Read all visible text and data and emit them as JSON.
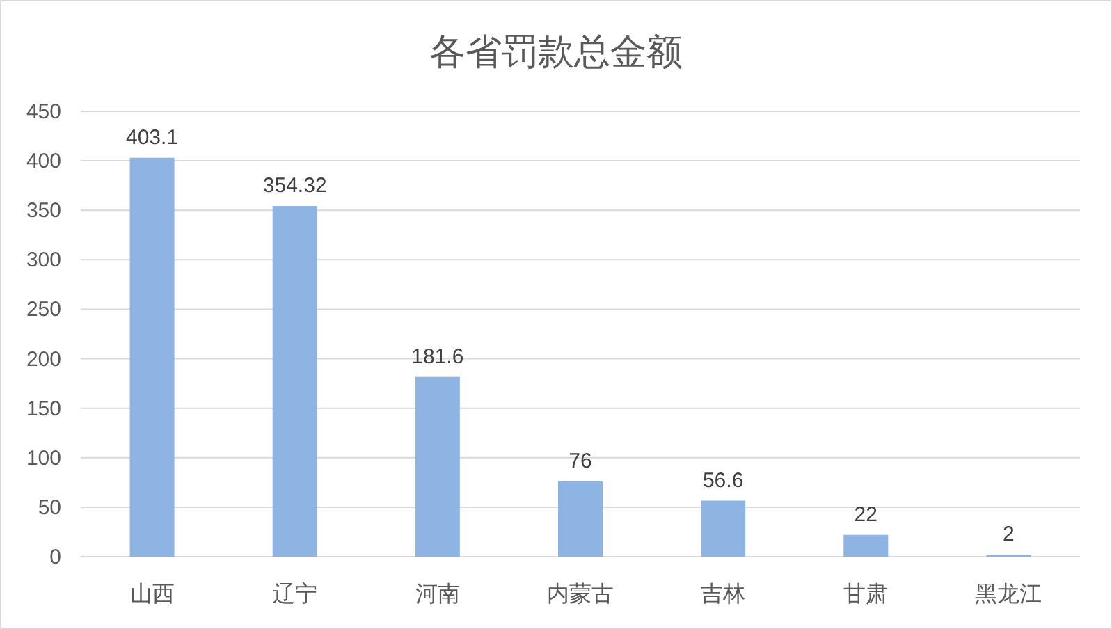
{
  "chart_data": {
    "type": "bar",
    "title": "各省罚款总金额",
    "categories": [
      "山西",
      "辽宁",
      "河南",
      "内蒙古",
      "吉林",
      "甘肃",
      "黑龙江"
    ],
    "values": [
      403.1,
      354.32,
      181.6,
      76,
      56.6,
      22,
      2
    ],
    "color": "#8eb4e3",
    "ylim": [
      0,
      450
    ],
    "yticks": [
      0,
      50,
      100,
      150,
      200,
      250,
      300,
      350,
      400,
      450
    ],
    "grid": "y",
    "data_labels": true
  }
}
